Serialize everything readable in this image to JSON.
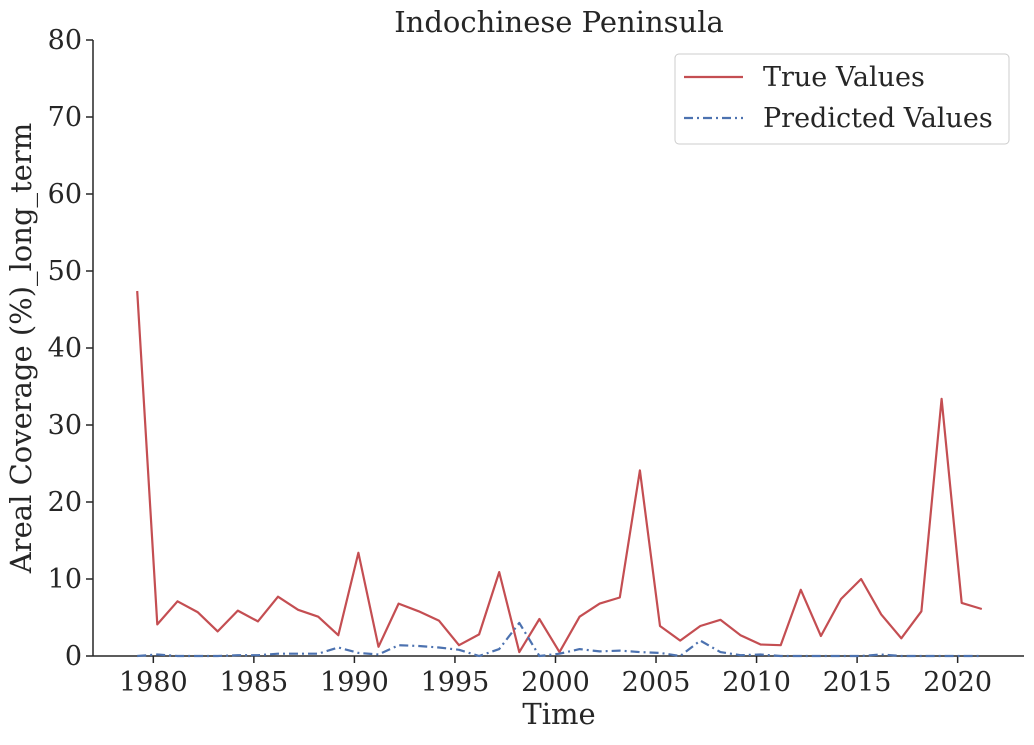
{
  "chart_data": {
    "type": "line",
    "title": "Indochinese Peninsula",
    "xlabel": "Time",
    "ylabel": "Areal Coverage (%)_long_term",
    "xlim": [
      1977,
      2023.3
    ],
    "ylim": [
      0,
      80
    ],
    "xticks": [
      1980,
      1985,
      1990,
      1995,
      2000,
      2005,
      2010,
      2015,
      2020
    ],
    "yticks": [
      0,
      10,
      20,
      30,
      40,
      50,
      60,
      70,
      80
    ],
    "grid": false,
    "legend_position": "top-right",
    "x": [
      1979.2,
      1980.2,
      1981.2,
      1982.2,
      1983.2,
      1984.2,
      1985.2,
      1986.2,
      1987.2,
      1988.2,
      1989.2,
      1990.2,
      1991.2,
      1992.2,
      1993.2,
      1994.2,
      1995.2,
      1996.2,
      1997.2,
      1998.2,
      1999.2,
      2000.2,
      2001.2,
      2002.2,
      2003.2,
      2004.2,
      2005.2,
      2006.2,
      2007.2,
      2008.2,
      2009.2,
      2010.2,
      2011.2,
      2012.2,
      2013.2,
      2014.2,
      2015.2,
      2016.2,
      2017.2,
      2018.2,
      2019.2,
      2020.2,
      2021.2
    ],
    "series": [
      {
        "name": "True Values",
        "color": "#c44e52",
        "style": "solid",
        "values": [
          47.4,
          4.1,
          7.1,
          5.7,
          3.2,
          5.9,
          4.5,
          7.7,
          6.0,
          5.1,
          2.7,
          13.4,
          1.2,
          6.8,
          5.8,
          4.6,
          1.4,
          2.8,
          10.9,
          0.5,
          4.8,
          0.5,
          5.1,
          6.8,
          7.6,
          24.1,
          3.9,
          2.0,
          3.9,
          4.7,
          2.7,
          1.5,
          1.4,
          8.6,
          2.6,
          7.4,
          10.0,
          5.4,
          2.3,
          5.8,
          33.4,
          6.9,
          6.1
        ]
      },
      {
        "name": "Predicted Values",
        "color": "#4c72b0",
        "style": "dashdot",
        "values": [
          0.0,
          0.2,
          0.0,
          0.0,
          0.0,
          0.1,
          0.1,
          0.3,
          0.3,
          0.3,
          1.1,
          0.4,
          0.2,
          1.4,
          1.3,
          1.1,
          0.8,
          0.0,
          0.9,
          4.3,
          0.0,
          0.3,
          0.9,
          0.6,
          0.7,
          0.5,
          0.4,
          0.0,
          2.0,
          0.5,
          0.1,
          0.2,
          0.0,
          0.0,
          0.0,
          0.0,
          0.0,
          0.2,
          0.0,
          0.0,
          0.0,
          0.0,
          0.0
        ]
      }
    ]
  }
}
